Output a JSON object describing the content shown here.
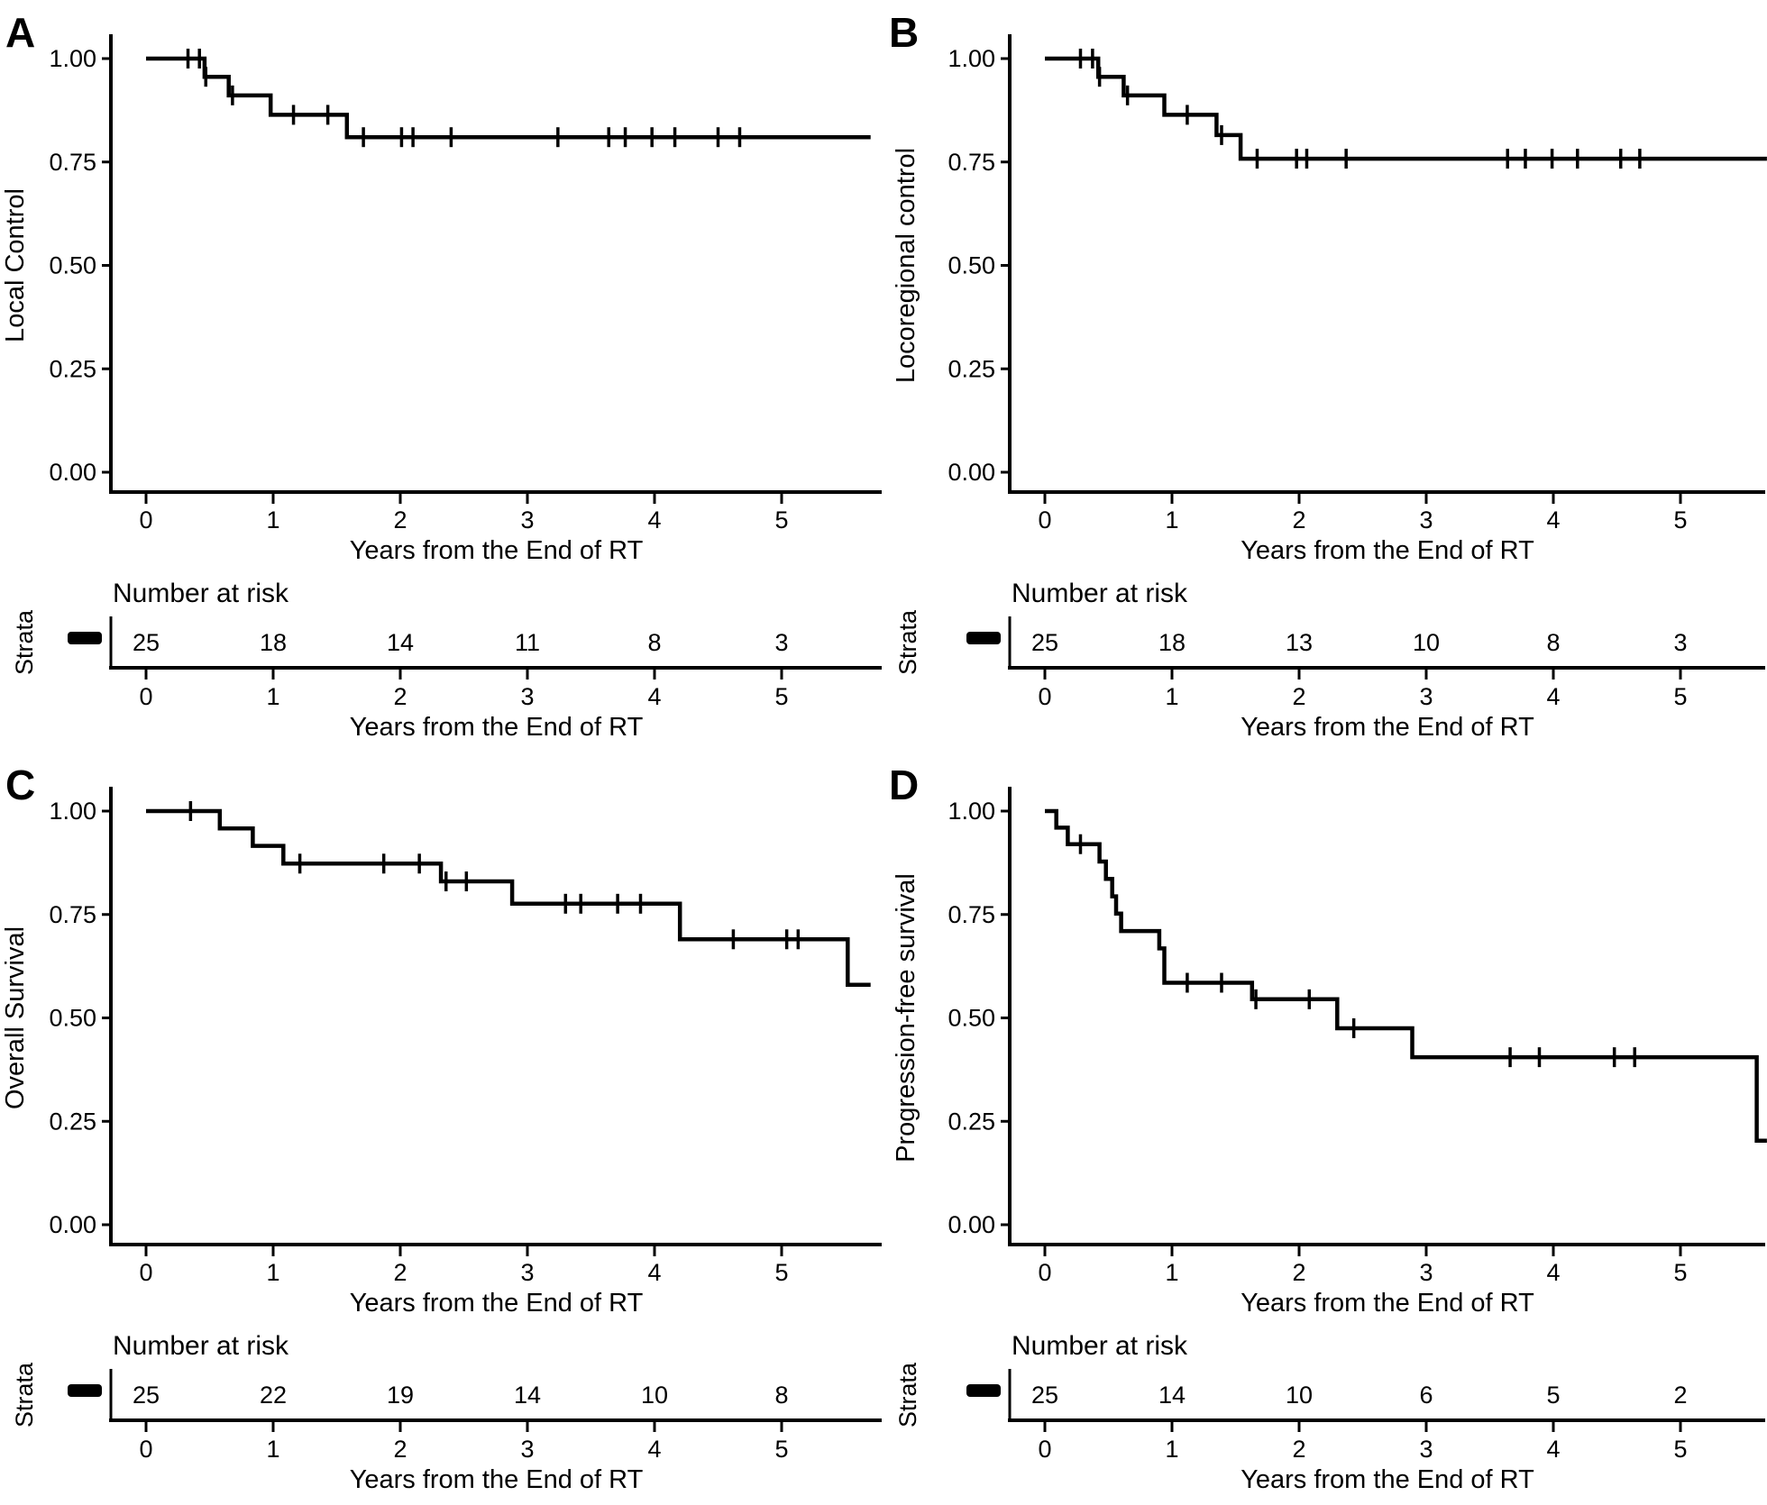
{
  "figure": {
    "background": "#ffffff",
    "ink_color": "#000000",
    "description": "Four-panel Kaplan-Meier survival figure with number-at-risk tables"
  },
  "chart_data": [
    {
      "type": "line",
      "letter": "A",
      "title": "Local Control",
      "ylabel": "Local Control",
      "xlabel": "Years from the End of RT",
      "risk_header": "Number at risk",
      "strata_label": "Strata",
      "side": "left",
      "xlim": [
        -0.28,
        5.95
      ],
      "ylim": [
        -0.05,
        1.05
      ],
      "xticks": [
        "0",
        "1",
        "2",
        "3",
        "4",
        "5"
      ],
      "yticks": [
        "0.00",
        "0.25",
        "0.50",
        "0.75",
        "1.00"
      ],
      "grid": "off",
      "legend": "none",
      "curve": [
        [
          0,
          1.0
        ],
        [
          0.46,
          1.0
        ],
        [
          0.46,
          0.956
        ],
        [
          0.65,
          0.956
        ],
        [
          0.65,
          0.911
        ],
        [
          0.98,
          0.911
        ],
        [
          0.98,
          0.864
        ],
        [
          1.58,
          0.864
        ],
        [
          1.58,
          0.81
        ],
        [
          5.7,
          0.81
        ]
      ],
      "censors": [
        [
          0.33,
          1.0
        ],
        [
          0.42,
          1.0
        ],
        [
          0.47,
          0.956
        ],
        [
          0.68,
          0.911
        ],
        [
          1.16,
          0.864
        ],
        [
          1.43,
          0.864
        ],
        [
          1.71,
          0.81
        ],
        [
          2.01,
          0.81
        ],
        [
          2.1,
          0.81
        ],
        [
          2.4,
          0.81
        ],
        [
          3.24,
          0.81
        ],
        [
          3.64,
          0.81
        ],
        [
          3.77,
          0.81
        ],
        [
          3.98,
          0.81
        ],
        [
          4.16,
          0.81
        ],
        [
          4.5,
          0.81
        ],
        [
          4.67,
          0.81
        ]
      ],
      "risk_times": [
        0,
        1,
        2,
        3,
        4,
        5
      ],
      "risk": [
        "25",
        "18",
        "14",
        "11",
        "8",
        "3"
      ]
    },
    {
      "type": "line",
      "letter": "B",
      "title": "Locoregional control",
      "ylabel": "Locoregional control",
      "xlabel": "Years from the End of RT",
      "risk_header": "Number at risk",
      "strata_label": "Strata",
      "side": "right",
      "xlim": [
        -0.28,
        5.95
      ],
      "ylim": [
        -0.05,
        1.05
      ],
      "xticks": [
        "0",
        "1",
        "2",
        "3",
        "4",
        "5"
      ],
      "yticks": [
        "0.00",
        "0.25",
        "0.50",
        "0.75",
        "1.00"
      ],
      "grid": "off",
      "legend": "none",
      "curve": [
        [
          0,
          1.0
        ],
        [
          0.42,
          1.0
        ],
        [
          0.42,
          0.956
        ],
        [
          0.62,
          0.956
        ],
        [
          0.62,
          0.911
        ],
        [
          0.94,
          0.911
        ],
        [
          0.94,
          0.864
        ],
        [
          1.35,
          0.864
        ],
        [
          1.35,
          0.815
        ],
        [
          1.54,
          0.815
        ],
        [
          1.54,
          0.758
        ],
        [
          5.68,
          0.758
        ]
      ],
      "censors": [
        [
          0.28,
          1.0
        ],
        [
          0.375,
          1.0
        ],
        [
          0.43,
          0.956
        ],
        [
          0.65,
          0.911
        ],
        [
          1.12,
          0.864
        ],
        [
          1.39,
          0.815
        ],
        [
          1.67,
          0.758
        ],
        [
          1.98,
          0.758
        ],
        [
          2.06,
          0.758
        ],
        [
          2.37,
          0.758
        ],
        [
          3.64,
          0.758
        ],
        [
          3.78,
          0.758
        ],
        [
          3.99,
          0.758
        ],
        [
          4.19,
          0.758
        ],
        [
          4.53,
          0.758
        ],
        [
          4.68,
          0.758
        ]
      ],
      "risk_times": [
        0,
        1,
        2,
        3,
        4,
        5
      ],
      "risk": [
        "25",
        "18",
        "13",
        "10",
        "8",
        "3"
      ]
    },
    {
      "type": "line",
      "letter": "C",
      "title": "Overall Survival",
      "ylabel": "Overall Survival",
      "xlabel": "Years from the End of RT",
      "risk_header": "Number at risk",
      "strata_label": "Strata",
      "side": "left",
      "xlim": [
        -0.28,
        5.95
      ],
      "ylim": [
        -0.05,
        1.05
      ],
      "xticks": [
        "0",
        "1",
        "2",
        "3",
        "4",
        "5"
      ],
      "yticks": [
        "0.00",
        "0.25",
        "0.50",
        "0.75",
        "1.00"
      ],
      "grid": "off",
      "legend": "none",
      "curve": [
        [
          0,
          1.0
        ],
        [
          0.58,
          1.0
        ],
        [
          0.58,
          0.958
        ],
        [
          0.84,
          0.958
        ],
        [
          0.84,
          0.916
        ],
        [
          1.08,
          0.916
        ],
        [
          1.08,
          0.873
        ],
        [
          2.32,
          0.873
        ],
        [
          2.32,
          0.83
        ],
        [
          2.88,
          0.83
        ],
        [
          2.88,
          0.776
        ],
        [
          4.2,
          0.776
        ],
        [
          4.2,
          0.69
        ],
        [
          5.52,
          0.69
        ],
        [
          5.52,
          0.58
        ],
        [
          5.7,
          0.58
        ]
      ],
      "censors": [
        [
          0.35,
          1.0
        ],
        [
          1.21,
          0.873
        ],
        [
          1.87,
          0.873
        ],
        [
          2.15,
          0.873
        ],
        [
          2.36,
          0.83
        ],
        [
          2.52,
          0.83
        ],
        [
          3.3,
          0.776
        ],
        [
          3.42,
          0.776
        ],
        [
          3.71,
          0.776
        ],
        [
          3.89,
          0.776
        ],
        [
          4.62,
          0.69
        ],
        [
          5.04,
          0.69
        ],
        [
          5.13,
          0.69
        ]
      ],
      "risk_times": [
        0,
        1,
        2,
        3,
        4,
        5
      ],
      "risk": [
        "25",
        "22",
        "19",
        "14",
        "10",
        "8"
      ]
    },
    {
      "type": "line",
      "letter": "D",
      "title": "Progression-free survival",
      "ylabel": "Progression-free survival",
      "xlabel": "Years from the End of RT",
      "risk_header": "Number at risk",
      "strata_label": "Strata",
      "side": "right",
      "xlim": [
        -0.28,
        5.95
      ],
      "ylim": [
        -0.05,
        1.05
      ],
      "xticks": [
        "0",
        "1",
        "2",
        "3",
        "4",
        "5"
      ],
      "yticks": [
        "0.00",
        "0.25",
        "0.50",
        "0.75",
        "1.00"
      ],
      "grid": "off",
      "legend": "none",
      "curve": [
        [
          0,
          1.0
        ],
        [
          0.09,
          1.0
        ],
        [
          0.09,
          0.96
        ],
        [
          0.18,
          0.96
        ],
        [
          0.18,
          0.92
        ],
        [
          0.43,
          0.92
        ],
        [
          0.43,
          0.878
        ],
        [
          0.48,
          0.878
        ],
        [
          0.48,
          0.836
        ],
        [
          0.53,
          0.836
        ],
        [
          0.53,
          0.794
        ],
        [
          0.56,
          0.794
        ],
        [
          0.56,
          0.752
        ],
        [
          0.6,
          0.752
        ],
        [
          0.6,
          0.71
        ],
        [
          0.9,
          0.71
        ],
        [
          0.9,
          0.668
        ],
        [
          0.94,
          0.668
        ],
        [
          0.94,
          0.585
        ],
        [
          1.63,
          0.585
        ],
        [
          1.63,
          0.545
        ],
        [
          2.3,
          0.545
        ],
        [
          2.3,
          0.475
        ],
        [
          2.89,
          0.475
        ],
        [
          2.89,
          0.405
        ],
        [
          5.6,
          0.405
        ],
        [
          5.6,
          0.203
        ],
        [
          5.68,
          0.203
        ]
      ],
      "censors": [
        [
          0.28,
          0.92
        ],
        [
          1.12,
          0.585
        ],
        [
          1.39,
          0.585
        ],
        [
          1.66,
          0.545
        ],
        [
          2.08,
          0.545
        ],
        [
          2.43,
          0.475
        ],
        [
          3.66,
          0.405
        ],
        [
          3.89,
          0.405
        ],
        [
          4.48,
          0.405
        ],
        [
          4.64,
          0.405
        ]
      ],
      "risk_times": [
        0,
        1,
        2,
        3,
        4,
        5
      ],
      "risk": [
        "25",
        "14",
        "10",
        "6",
        "5",
        "2"
      ]
    }
  ]
}
